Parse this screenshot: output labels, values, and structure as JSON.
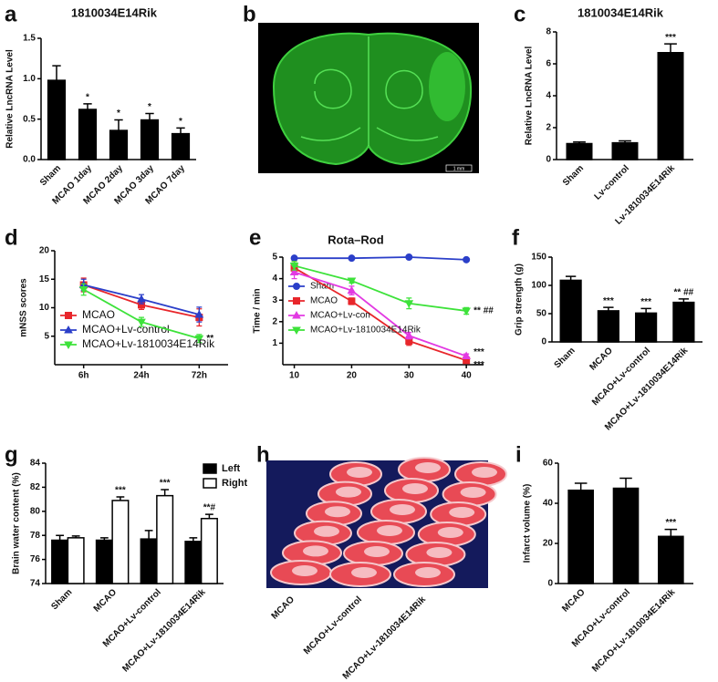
{
  "chart_data": [
    {
      "type": "bar",
      "panel_label": "a",
      "title": "1810034E14Rik",
      "ylabel": "Relative LncRNA Level",
      "categories": [
        "Sham",
        "MCAO 1day",
        "MCAO 2day",
        "MCAO 3day",
        "MCAO 7day"
      ],
      "values": [
        0.98,
        0.62,
        0.36,
        0.49,
        0.32
      ],
      "errors": [
        0.18,
        0.07,
        0.13,
        0.08,
        0.07
      ],
      "annotations": [
        null,
        "*",
        "*",
        "*",
        "*"
      ],
      "color": "#000000",
      "ylim": [
        0,
        1.5
      ],
      "yticks": [
        {
          "value": 0,
          "label": "0.0"
        },
        {
          "value": 0.5,
          "label": "0.5"
        },
        {
          "value": 1,
          "label": "1.0"
        },
        {
          "value": 1.5,
          "label": "1.5"
        }
      ]
    },
    {
      "type": "image",
      "panel_label": "b",
      "scale_bar": "1 mm"
    },
    {
      "type": "bar",
      "panel_label": "c",
      "title": "1810034E14Rik",
      "ylabel": "Relative LncRNA Level",
      "categories": [
        "Sham",
        "Lv-control",
        "Lv-1810034E14Rik"
      ],
      "values": [
        1.0,
        1.05,
        6.7
      ],
      "errors": [
        0.1,
        0.12,
        0.55
      ],
      "annotations": [
        null,
        null,
        "***"
      ],
      "color": "#000000",
      "ylim": [
        0,
        8
      ],
      "yticks": [
        0,
        2,
        4,
        6,
        8
      ]
    },
    {
      "type": "line",
      "panel_label": "d",
      "ylabel": "mNSS scores",
      "categories": [
        "6h",
        "24h",
        "72h"
      ],
      "ylim": [
        0,
        20
      ],
      "yticks": [
        5,
        10,
        15,
        20
      ],
      "legend": "lower left",
      "series": [
        {
          "name": "MCAO",
          "color": "#e8262b",
          "marker": "square",
          "values": [
            14,
            10.5,
            8.3
          ],
          "errors": [
            1.2,
            0.8,
            1.5
          ]
        },
        {
          "name": "MCAO+Lv-control",
          "color": "#2b3fc9",
          "marker": "triangle",
          "values": [
            14,
            11.5,
            8.8
          ],
          "errors": [
            1,
            0.8,
            1.3
          ]
        },
        {
          "name": "MCAO+Lv-1810034E14Rik",
          "color": "#3de23a",
          "marker": "triangle-down",
          "values": [
            13.2,
            7.5,
            4.6
          ],
          "errors": [
            1,
            0.8,
            0.7
          ],
          "annotation": "**"
        }
      ]
    },
    {
      "type": "line",
      "panel_label": "e",
      "title": "Rota–Rod",
      "ylabel": "Time / min",
      "x": [
        10,
        20,
        30,
        40
      ],
      "xlim": [
        8,
        43
      ],
      "xticks": [
        10,
        20,
        30,
        40
      ],
      "ylim": [
        0,
        5
      ],
      "yticks": [
        1,
        2,
        3,
        4,
        5
      ],
      "legend": "lower left",
      "series": [
        {
          "name": "Sham",
          "color": "#2b3fc9",
          "marker": "circle",
          "values": [
            4.95,
            4.95,
            5.0,
            4.88
          ],
          "errors": [
            0.05,
            0.05,
            0.04,
            0.06
          ]
        },
        {
          "name": "MCAO",
          "color": "#e8262b",
          "marker": "square",
          "values": [
            4.5,
            2.95,
            1.1,
            0.2
          ],
          "errors": [
            0.3,
            0.15,
            0.2,
            0.1
          ],
          "annotation": "***"
        },
        {
          "name": "MCAO+Lv-con",
          "color": "#e23ae2",
          "marker": "triangle",
          "values": [
            4.3,
            3.45,
            1.35,
            0.4
          ],
          "errors": [
            0.3,
            0.2,
            0.15,
            0.1
          ],
          "annotation": "***"
        },
        {
          "name": "MCAO+Lv-1810034E14Rik",
          "color": "#3de23a",
          "marker": "triangle-down",
          "values": [
            4.6,
            3.9,
            2.85,
            2.5
          ],
          "errors": [
            0.2,
            0.1,
            0.25,
            0.15
          ],
          "annotation": "** ##"
        }
      ]
    },
    {
      "type": "bar",
      "panel_label": "f",
      "ylabel": "Grip strength (g)",
      "categories": [
        "Sham",
        "MCAO",
        "MCAO+Lv-control",
        "MCAO+Lv-1810034E14Rik"
      ],
      "values": [
        109,
        55,
        51,
        70
      ],
      "errors": [
        7,
        6,
        8,
        6
      ],
      "annotations": [
        null,
        "***",
        "***",
        "** ##"
      ],
      "color": "#000000",
      "ylim": [
        0,
        150
      ],
      "yticks": [
        0,
        50,
        100,
        150
      ]
    },
    {
      "type": "bar",
      "panel_label": "g",
      "ylabel": "Brain water content (%)",
      "categories": [
        "Sham",
        "MCAO",
        "MCAO+Lv-control",
        "MCAO+Lv-1810034E14Rik"
      ],
      "ylim": [
        74,
        84
      ],
      "yticks": [
        74,
        76,
        78,
        80,
        82,
        84
      ],
      "legend": "upper right",
      "series": [
        {
          "name": "Left",
          "color": "#000000",
          "values": [
            77.6,
            77.6,
            77.7,
            77.5
          ],
          "errors": [
            0.4,
            0.2,
            0.7,
            0.3
          ]
        },
        {
          "name": "Right",
          "color": "#ffffff",
          "values": [
            77.8,
            80.9,
            81.3,
            79.4
          ],
          "errors": [
            0.15,
            0.3,
            0.5,
            0.35
          ],
          "annotations": [
            null,
            "***",
            "***",
            "**#"
          ]
        }
      ]
    },
    {
      "type": "image",
      "panel_label": "h",
      "categories": [
        "MCAO",
        "MCAO+Lv-control",
        "MCAO+Lv-1810034E14Rik"
      ]
    },
    {
      "type": "bar",
      "panel_label": "i",
      "ylabel": "Infarct volume (%)",
      "categories": [
        "MCAO",
        "MCAO+Lv-control",
        "MCAO+Lv-1810034E14Rik"
      ],
      "values": [
        46.5,
        47.5,
        23.5
      ],
      "errors": [
        3.5,
        5,
        3.5
      ],
      "annotations": [
        null,
        null,
        "***"
      ],
      "color": "#000000",
      "ylim": [
        0,
        60
      ],
      "yticks": [
        0,
        20,
        40,
        60
      ]
    }
  ]
}
